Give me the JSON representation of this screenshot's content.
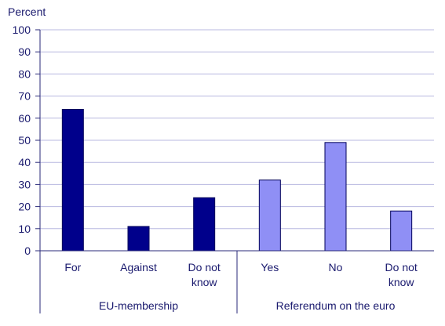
{
  "chart_data": {
    "type": "bar",
    "ylabel": "Percent",
    "ylim": [
      0,
      100
    ],
    "yticks": [
      0,
      10,
      20,
      30,
      40,
      50,
      60,
      70,
      80,
      90,
      100
    ],
    "grid": true,
    "groups": [
      {
        "label": "EU-membership",
        "color": "#00008b",
        "categories": [
          [
            "For"
          ],
          [
            "Against"
          ],
          [
            "Do not",
            "know"
          ]
        ],
        "values": [
          64,
          11,
          24
        ]
      },
      {
        "label": "Referendum on the euro",
        "color": "#8f8ff5",
        "categories": [
          [
            "Yes"
          ],
          [
            "No"
          ],
          [
            "Do not",
            "know"
          ]
        ],
        "values": [
          32,
          49,
          18
        ]
      }
    ]
  }
}
